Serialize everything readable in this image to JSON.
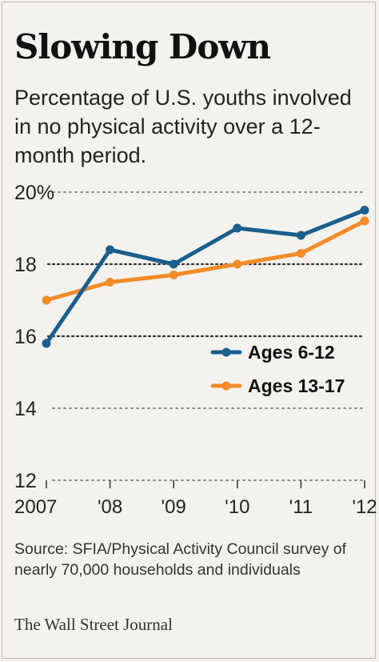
{
  "header": {
    "title": "Slowing Down",
    "subtitle": "Percentage of U.S. youths involved in no physical activity over a 12-month period."
  },
  "chart_data": {
    "type": "line",
    "title": "Slowing Down",
    "subtitle": "Percentage of U.S. youths involved in no physical activity over a 12-month period.",
    "xlabel": "",
    "ylabel": "",
    "x": [
      2007,
      2008,
      2009,
      2010,
      2011,
      2012
    ],
    "x_tick_labels": [
      "2007",
      "'08",
      "'09",
      "'10",
      "'11",
      "'12"
    ],
    "y_ticks": [
      12,
      14,
      16,
      18,
      20
    ],
    "y_tick_labels": [
      "12",
      "14",
      "16",
      "18",
      "20%"
    ],
    "ylim": [
      12,
      20
    ],
    "grid": "dotted horizontal",
    "legend_position": "right-middle",
    "series": [
      {
        "name": "Ages 6-12",
        "color": "#1b5f8c",
        "values": [
          15.8,
          18.4,
          18.0,
          19.0,
          18.8,
          19.5
        ]
      },
      {
        "name": "Ages 13-17",
        "color": "#f28c28",
        "values": [
          17.0,
          17.5,
          17.7,
          18.0,
          18.3,
          19.2
        ]
      }
    ]
  },
  "footer": {
    "source": "Source: SFIA/Physical Activity Council survey of nearly 70,000 households and individuals",
    "credit": "The Wall Street Journal"
  }
}
